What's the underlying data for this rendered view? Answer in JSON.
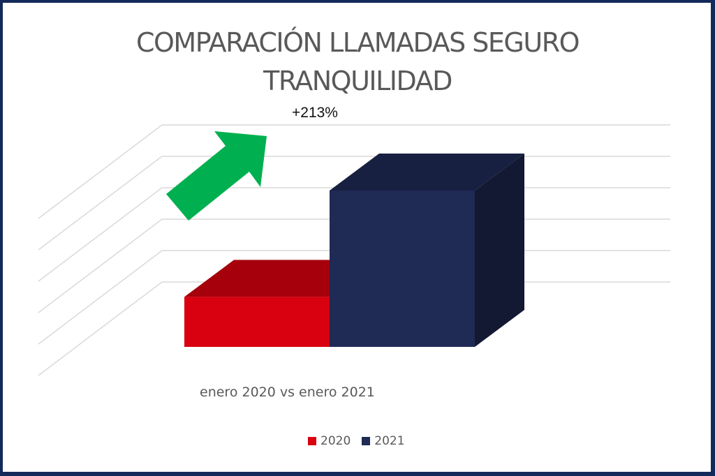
{
  "chart_data": {
    "type": "bar",
    "style": "3d-column",
    "title": "COMPARACIÓN  LLAMADAS SEGURO TRANQUILIDAD",
    "title_lines": [
      "COMPARACIÓN  LLAMADAS SEGURO",
      "TRANQUILIDAD"
    ],
    "xlabel": "enero 2020 vs enero 2021",
    "ylabel": "",
    "categories": [
      "enero"
    ],
    "series": [
      {
        "name": "2020",
        "values": [
          100
        ],
        "color": "#d9000f"
      },
      {
        "name": "2021",
        "values": [
          313
        ],
        "color": "#1f2a55"
      }
    ],
    "value_note": "relative index (2020 = 100); no axis values shown",
    "ylim": [
      0,
      440
    ],
    "gridline_count": 6,
    "grid": true,
    "legend": {
      "position": "bottom",
      "entries": [
        "2020",
        "2021"
      ]
    },
    "annotations": [
      {
        "text": "+213%",
        "type": "label"
      },
      {
        "type": "arrow",
        "direction": "up-right",
        "color": "#00b050"
      }
    ]
  },
  "colors": {
    "border": "#13295a",
    "title": "#595959",
    "grid": "#d9d9d9",
    "arrow": "#00b050"
  }
}
